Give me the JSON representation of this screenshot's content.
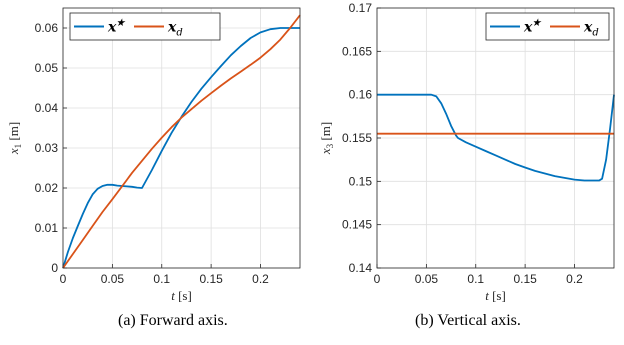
{
  "chart_data": [
    {
      "type": "line",
      "caption": "(a) Forward axis.",
      "xlabel": "t [s]",
      "ylabel": "x1 [m]",
      "xlim": [
        0,
        0.24
      ],
      "ylim": [
        0,
        0.065
      ],
      "xticks": [
        "0",
        "0.05",
        "0.1",
        "0.15",
        "0.2"
      ],
      "yticks": [
        "0",
        "0.01",
        "0.02",
        "0.03",
        "0.04",
        "0.05",
        "0.06"
      ],
      "grid": true,
      "legend": "top-left",
      "series": [
        {
          "name": "x*",
          "color": "#0072BD",
          "x": [
            0,
            0.005,
            0.01,
            0.015,
            0.02,
            0.025,
            0.03,
            0.035,
            0.04,
            0.045,
            0.05,
            0.055,
            0.06,
            0.065,
            0.07,
            0.075,
            0.08,
            0.09,
            0.1,
            0.11,
            0.12,
            0.13,
            0.14,
            0.15,
            0.16,
            0.17,
            0.18,
            0.19,
            0.2,
            0.21,
            0.22,
            0.23,
            0.24
          ],
          "y": [
            0,
            0.004,
            0.0075,
            0.0105,
            0.0135,
            0.0162,
            0.0184,
            0.0198,
            0.0205,
            0.0208,
            0.0208,
            0.0206,
            0.0205,
            0.0204,
            0.0203,
            0.0201,
            0.02,
            0.0245,
            0.0293,
            0.0338,
            0.0378,
            0.0415,
            0.0448,
            0.0477,
            0.0505,
            0.0532,
            0.0555,
            0.0575,
            0.0589,
            0.0597,
            0.06,
            0.06,
            0.06
          ]
        },
        {
          "name": "x_d",
          "color": "#D95319",
          "x": [
            0,
            0.01,
            0.02,
            0.03,
            0.04,
            0.05,
            0.06,
            0.07,
            0.08,
            0.09,
            0.1,
            0.11,
            0.12,
            0.13,
            0.14,
            0.15,
            0.16,
            0.17,
            0.18,
            0.19,
            0.2,
            0.21,
            0.22,
            0.23,
            0.24
          ],
          "y": [
            0,
            0.0035,
            0.007,
            0.0105,
            0.014,
            0.0172,
            0.0205,
            0.0238,
            0.0268,
            0.0298,
            0.0326,
            0.0352,
            0.0376,
            0.0397,
            0.0418,
            0.0437,
            0.0456,
            0.0474,
            0.0491,
            0.0508,
            0.0526,
            0.0547,
            0.0571,
            0.06,
            0.0632
          ]
        }
      ]
    },
    {
      "type": "line",
      "caption": "(b) Vertical axis.",
      "xlabel": "t [s]",
      "ylabel": "x3 [m]",
      "xlim": [
        0,
        0.24
      ],
      "ylim": [
        0.14,
        0.17
      ],
      "xticks": [
        "0",
        "0.05",
        "0.1",
        "0.15",
        "0.2"
      ],
      "yticks": [
        "0.14",
        "0.145",
        "0.15",
        "0.155",
        "0.16",
        "0.165",
        "0.17"
      ],
      "grid": true,
      "legend": "top-right",
      "series": [
        {
          "name": "x*",
          "color": "#0072BD",
          "x": [
            0,
            0.02,
            0.04,
            0.055,
            0.06,
            0.065,
            0.07,
            0.075,
            0.08,
            0.082,
            0.09,
            0.1,
            0.11,
            0.12,
            0.13,
            0.14,
            0.15,
            0.16,
            0.17,
            0.18,
            0.19,
            0.2,
            0.21,
            0.22,
            0.225,
            0.228,
            0.232,
            0.236,
            0.24
          ],
          "y": [
            0.16,
            0.16,
            0.16,
            0.16,
            0.1598,
            0.159,
            0.1578,
            0.1564,
            0.1553,
            0.155,
            0.1545,
            0.154,
            0.1535,
            0.153,
            0.1525,
            0.152,
            0.1516,
            0.1512,
            0.1509,
            0.1506,
            0.1504,
            0.1502,
            0.1501,
            0.1501,
            0.1501,
            0.1503,
            0.1525,
            0.156,
            0.16
          ]
        },
        {
          "name": "x_d",
          "color": "#D95319",
          "x": [
            0,
            0.24
          ],
          "y": [
            0.1555,
            0.1555
          ]
        }
      ]
    }
  ],
  "legend_labels": {
    "star": "x★",
    "d": "x",
    "d_sub": "d"
  }
}
